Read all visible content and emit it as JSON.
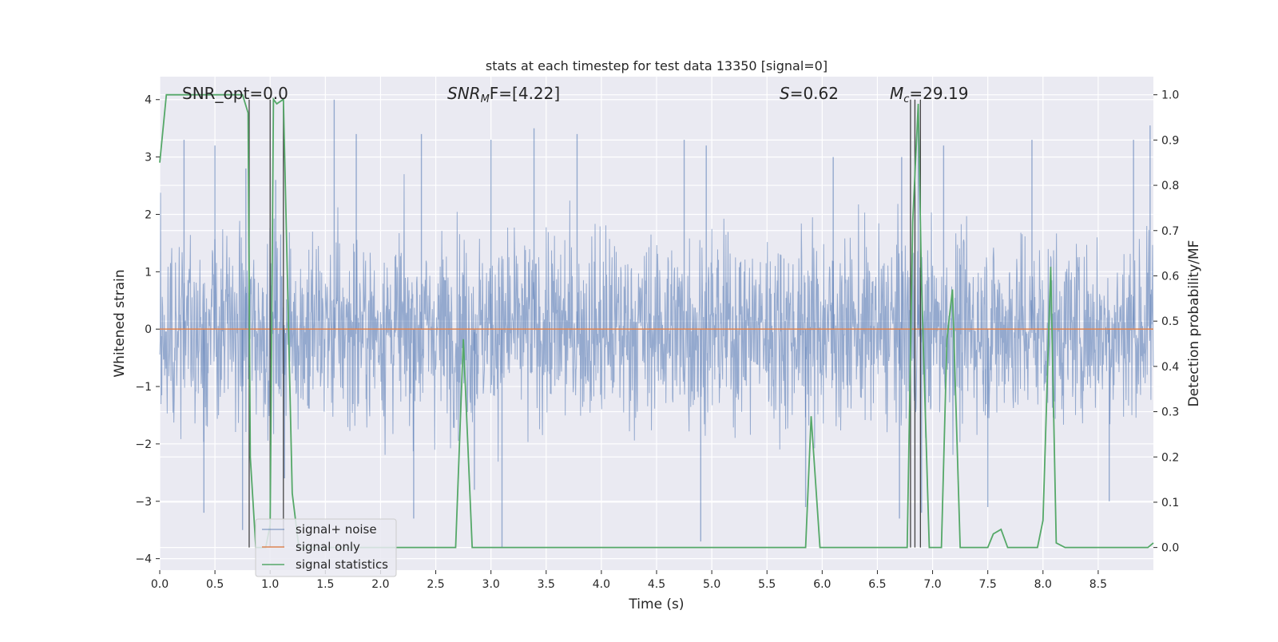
{
  "chart_data": {
    "type": "line",
    "title": "stats at each timestep for test data 13350 [signal=0]",
    "xlabel": "Time (s)",
    "ylabel": "Whitened strain",
    "ylabel_right": "Detection probability/MF",
    "xlim": [
      0.0,
      9.0
    ],
    "ylim": [
      -4.2,
      4.4
    ],
    "ylim_right": [
      -0.05,
      1.04
    ],
    "x_ticks": [
      "0.0",
      "0.5",
      "1.0",
      "1.5",
      "2.0",
      "2.5",
      "3.0",
      "3.5",
      "4.0",
      "4.5",
      "5.0",
      "5.5",
      "6.0",
      "6.5",
      "7.0",
      "7.5",
      "8.0",
      "8.5"
    ],
    "y_ticks": [
      "4",
      "3",
      "2",
      "1",
      "0",
      "−1",
      "−2",
      "−3",
      "−4"
    ],
    "y_ticks_right": [
      "1.0",
      "0.9",
      "0.8",
      "0.7",
      "0.6",
      "0.5",
      "0.4",
      "0.3",
      "0.2",
      "0.1",
      "0.0"
    ],
    "grid": true,
    "legend_position": "lower-left",
    "annotations": {
      "snr_opt": "SNR_opt=0.0",
      "snr_mf_name": "SNR",
      "snr_mf_sub": "M",
      "snr_mf_rest": "F=[4.22]",
      "s_name": "S",
      "s_rest": "=0.62",
      "mc_name": "M",
      "mc_sub": "c",
      "mc_rest": "=29.19"
    },
    "series": [
      {
        "name": "signal+ noise",
        "axis": "left",
        "color": "#4c72b0",
        "description_samples": "dense noise, approx -2.5 to 3 typical, peaks to 4.0",
        "peaks": [
          [
            0.22,
            3.3
          ],
          [
            0.5,
            3.2
          ],
          [
            0.78,
            2.8
          ],
          [
            1.05,
            2.6
          ],
          [
            1.58,
            4.0
          ],
          [
            1.78,
            3.4
          ],
          [
            2.37,
            3.4
          ],
          [
            3.0,
            3.3
          ],
          [
            3.39,
            3.5
          ],
          [
            3.78,
            3.4
          ],
          [
            4.75,
            3.3
          ],
          [
            4.95,
            3.2
          ],
          [
            6.1,
            3.0
          ],
          [
            6.72,
            3.0
          ],
          [
            6.87,
            3.9
          ],
          [
            7.1,
            3.2
          ],
          [
            7.9,
            3.3
          ],
          [
            8.82,
            3.3
          ],
          [
            8.97,
            3.55
          ]
        ],
        "troughs": [
          [
            0.4,
            -3.2
          ],
          [
            0.75,
            -3.5
          ],
          [
            1.13,
            -2.6
          ],
          [
            2.3,
            -3.3
          ],
          [
            2.85,
            -2.8
          ],
          [
            3.1,
            -3.8
          ],
          [
            4.9,
            -3.7
          ],
          [
            5.85,
            -3.1
          ],
          [
            6.7,
            -3.3
          ],
          [
            6.9,
            -3.2
          ],
          [
            7.5,
            -3.1
          ],
          [
            8.6,
            -3.0
          ]
        ]
      },
      {
        "name": "signal only",
        "axis": "left",
        "color": "#dd8452",
        "x": [
          0.0,
          9.0
        ],
        "y": [
          0.0,
          0.0
        ]
      },
      {
        "name": "signal statistics",
        "axis": "right",
        "color": "#55a868",
        "x": [
          0.0,
          0.06,
          0.12,
          0.2,
          0.3,
          0.4,
          0.5,
          0.6,
          0.7,
          0.75,
          0.8,
          0.82,
          0.87,
          0.9,
          0.96,
          1.0,
          1.03,
          1.06,
          1.12,
          1.2,
          1.26,
          1.35,
          2.0,
          2.6,
          2.68,
          2.75,
          2.83,
          2.9,
          3.5,
          5.8,
          5.85,
          5.9,
          5.98,
          6.05,
          6.77,
          6.82,
          6.87,
          6.9,
          6.97,
          7.02,
          7.08,
          7.13,
          7.18,
          7.25,
          7.5,
          7.55,
          7.62,
          7.68,
          7.75,
          7.95,
          8.0,
          8.07,
          8.12,
          8.2,
          8.5,
          8.95,
          9.0
        ],
        "y": [
          0.85,
          1.0,
          1.0,
          1.0,
          1.0,
          1.0,
          1.0,
          1.0,
          1.0,
          1.0,
          0.96,
          0.2,
          0.0,
          0.0,
          0.0,
          0.05,
          0.99,
          0.98,
          0.99,
          0.12,
          0.0,
          0.0,
          0.0,
          0.0,
          0.0,
          0.46,
          0.0,
          0.0,
          0.0,
          0.0,
          0.0,
          0.29,
          0.0,
          0.0,
          0.0,
          0.72,
          0.98,
          0.58,
          0.0,
          0.0,
          0.0,
          0.46,
          0.57,
          0.0,
          0.0,
          0.03,
          0.04,
          0.0,
          0.0,
          0.0,
          0.06,
          0.62,
          0.01,
          0.0,
          0.0,
          0.0,
          0.01
        ]
      }
    ],
    "vertical_markers_x": [
      0.81,
      1.0,
      1.12,
      6.8,
      6.84,
      6.89
    ]
  }
}
